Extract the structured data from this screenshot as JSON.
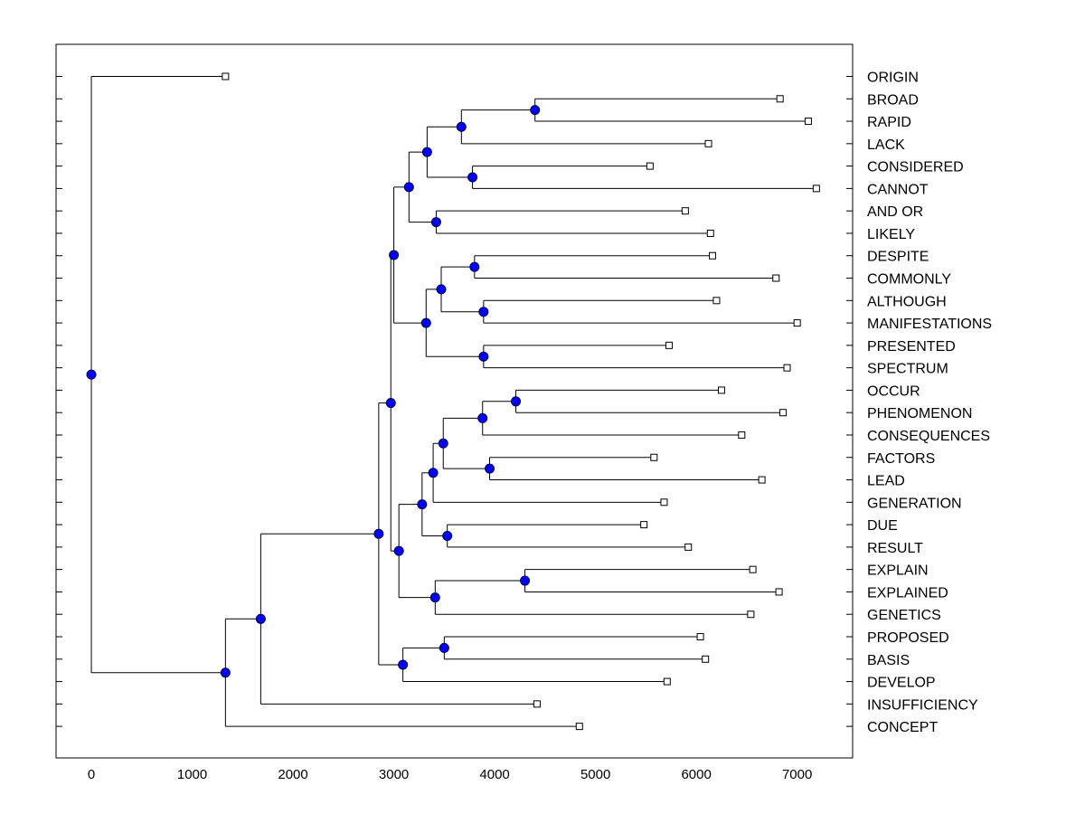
{
  "chart_data": {
    "type": "dendrogram",
    "orientation": "horizontal",
    "title": "",
    "xlabel": "",
    "ylabel": "",
    "xlim": [
      -350,
      7550
    ],
    "xticks": [
      0,
      1000,
      2000,
      3000,
      4000,
      5000,
      6000,
      7000
    ],
    "xtick_labels": [
      "0",
      "1000",
      "2000",
      "3000",
      "4000",
      "5000",
      "6000",
      "7000"
    ],
    "leaves": [
      {
        "label": "ORIGIN",
        "value": 1330
      },
      {
        "label": "BROAD",
        "value": 6830
      },
      {
        "label": "RAPID",
        "value": 7110
      },
      {
        "label": "LACK",
        "value": 6120
      },
      {
        "label": "CONSIDERED",
        "value": 5540
      },
      {
        "label": "CANNOT",
        "value": 7190
      },
      {
        "label": "AND OR",
        "value": 5890
      },
      {
        "label": "LIKELY",
        "value": 6140
      },
      {
        "label": "DESPITE",
        "value": 6160
      },
      {
        "label": "COMMONLY",
        "value": 6790
      },
      {
        "label": "ALTHOUGH",
        "value": 6200
      },
      {
        "label": "MANIFESTATIONS",
        "value": 7000
      },
      {
        "label": "PRESENTED",
        "value": 5730
      },
      {
        "label": "SPECTRUM",
        "value": 6900
      },
      {
        "label": "OCCUR",
        "value": 6250
      },
      {
        "label": "PHENOMENON",
        "value": 6860
      },
      {
        "label": "CONSEQUENCES",
        "value": 6450
      },
      {
        "label": "FACTORS",
        "value": 5580
      },
      {
        "label": "LEAD",
        "value": 6650
      },
      {
        "label": "GENERATION",
        "value": 5680
      },
      {
        "label": "DUE",
        "value": 5480
      },
      {
        "label": "RESULT",
        "value": 5920
      },
      {
        "label": "EXPLAIN",
        "value": 6560
      },
      {
        "label": "EXPLAINED",
        "value": 6820
      },
      {
        "label": "GENETICS",
        "value": 6540
      },
      {
        "label": "PROPOSED",
        "value": 6040
      },
      {
        "label": "BASIS",
        "value": 6090
      },
      {
        "label": "DEVELOP",
        "value": 5710
      },
      {
        "label": "INSUFFICIENCY",
        "value": 4420
      },
      {
        "label": "CONCEPT",
        "value": 4840
      }
    ],
    "merges": [
      {
        "id": "n1",
        "value": 4400,
        "children": [
          "L1",
          "L2"
        ]
      },
      {
        "id": "n2",
        "value": 3670,
        "children": [
          "n1",
          "L3"
        ]
      },
      {
        "id": "n3",
        "value": 3780,
        "children": [
          "L4",
          "L5"
        ]
      },
      {
        "id": "n4",
        "value": 3330,
        "children": [
          "n2",
          "n3"
        ]
      },
      {
        "id": "n5",
        "value": 3420,
        "children": [
          "L6",
          "L7"
        ]
      },
      {
        "id": "n6",
        "value": 3150,
        "children": [
          "n4",
          "n5"
        ]
      },
      {
        "id": "n7",
        "value": 3800,
        "children": [
          "L8",
          "L9"
        ]
      },
      {
        "id": "n8",
        "value": 3890,
        "children": [
          "L10",
          "L11"
        ]
      },
      {
        "id": "n9",
        "value": 3470,
        "children": [
          "n7",
          "n8"
        ]
      },
      {
        "id": "n10",
        "value": 3890,
        "children": [
          "L12",
          "L13"
        ]
      },
      {
        "id": "n11",
        "value": 3320,
        "children": [
          "n9",
          "n10"
        ]
      },
      {
        "id": "n12",
        "value": 3000,
        "children": [
          "n6",
          "n11"
        ]
      },
      {
        "id": "n13",
        "value": 4210,
        "children": [
          "L14",
          "L15"
        ]
      },
      {
        "id": "n14",
        "value": 3880,
        "children": [
          "n13",
          "L16"
        ]
      },
      {
        "id": "n15",
        "value": 3950,
        "children": [
          "L17",
          "L18"
        ]
      },
      {
        "id": "n16",
        "value": 3490,
        "children": [
          "n14",
          "n15"
        ]
      },
      {
        "id": "n17",
        "value": 3390,
        "children": [
          "n16",
          "L19"
        ]
      },
      {
        "id": "n18",
        "value": 3530,
        "children": [
          "L20",
          "L21"
        ]
      },
      {
        "id": "n19",
        "value": 3280,
        "children": [
          "n17",
          "n18"
        ]
      },
      {
        "id": "n20",
        "value": 4300,
        "children": [
          "L22",
          "L23"
        ]
      },
      {
        "id": "n21",
        "value": 3410,
        "children": [
          "n20",
          "L24"
        ]
      },
      {
        "id": "n22",
        "value": 3050,
        "children": [
          "n19",
          "n21"
        ]
      },
      {
        "id": "n23",
        "value": 2970,
        "children": [
          "n12",
          "n22"
        ]
      },
      {
        "id": "n24",
        "value": 3500,
        "children": [
          "L25",
          "L26"
        ]
      },
      {
        "id": "n25",
        "value": 3090,
        "children": [
          "n24",
          "L27"
        ]
      },
      {
        "id": "n26",
        "value": 2850,
        "children": [
          "n23",
          "n25"
        ]
      },
      {
        "id": "n27",
        "value": 1680,
        "children": [
          "n26",
          "L28"
        ]
      },
      {
        "id": "n28",
        "value": 1330,
        "children": [
          "n27",
          "L29"
        ]
      },
      {
        "id": "n29",
        "value": 0,
        "children": [
          "L0",
          "n28"
        ]
      }
    ],
    "colors": {
      "node_fill": "#0000ff",
      "node_stroke": "#000040",
      "leaf_fill": "#ffffff",
      "line": "#000000",
      "frame": "#000000"
    }
  }
}
